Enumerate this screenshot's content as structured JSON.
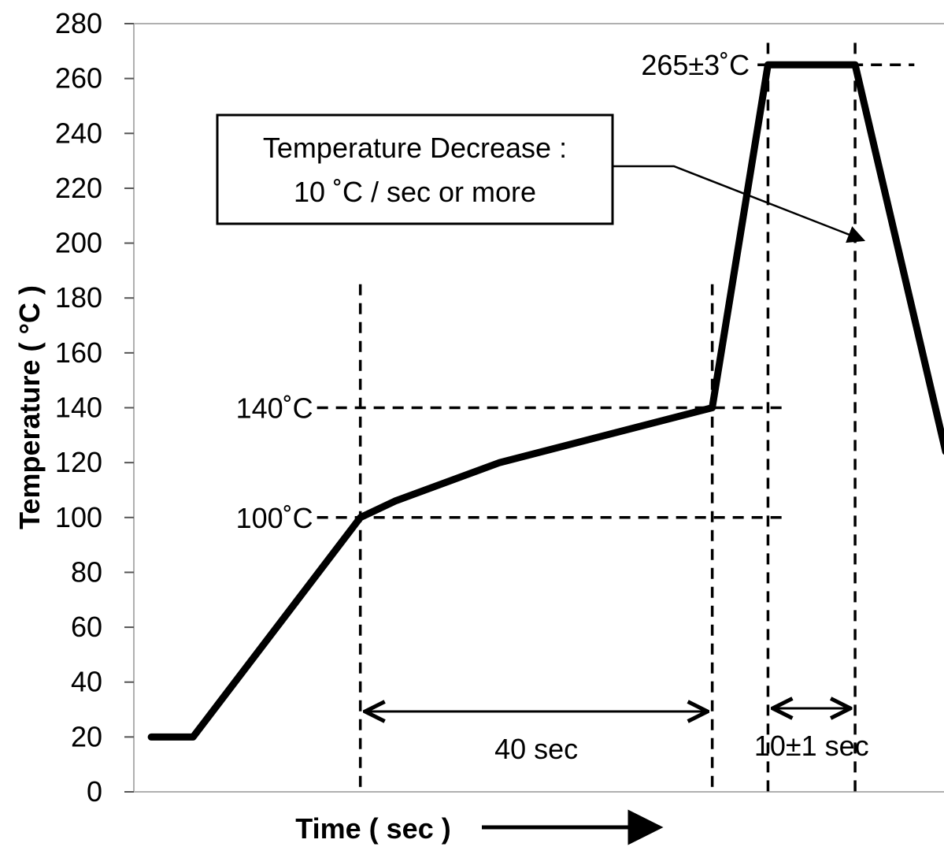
{
  "chart_data": {
    "type": "line",
    "title": "",
    "xlabel": "Time ( sec )",
    "ylabel": "Temperature ( °C )",
    "ylim": [
      0,
      280
    ],
    "y_ticks": [
      "0",
      "20",
      "40",
      "60",
      "80",
      "100",
      "120",
      "140",
      "160",
      "180",
      "200",
      "220",
      "240",
      "260",
      "280"
    ],
    "grid": false,
    "legend": "none",
    "line_color": "#000000",
    "series": [
      {
        "x": [
          0,
          12,
          60,
          70,
          100,
          161,
          177,
          202,
          228
        ],
        "y": [
          20,
          20,
          100,
          106,
          120,
          140,
          265,
          265,
          124
        ]
      }
    ],
    "x_range": [
      -5,
      230
    ],
    "guides": {
      "horizontal": [
        {
          "label": "140˚C",
          "y": 140
        },
        {
          "label": "100˚C",
          "y": 100
        },
        {
          "label": "265±3˚C",
          "y": 265
        }
      ],
      "vertical_x": [
        60,
        161,
        177,
        202
      ]
    },
    "spans": [
      {
        "label": "40 sec",
        "from": 60,
        "to": 161
      },
      {
        "label": "10±1 sec",
        "from": 177,
        "to": 202
      }
    ],
    "annotation": {
      "lines": [
        "Temperature Decrease :",
        "10 ˚C / sec or more"
      ]
    }
  }
}
